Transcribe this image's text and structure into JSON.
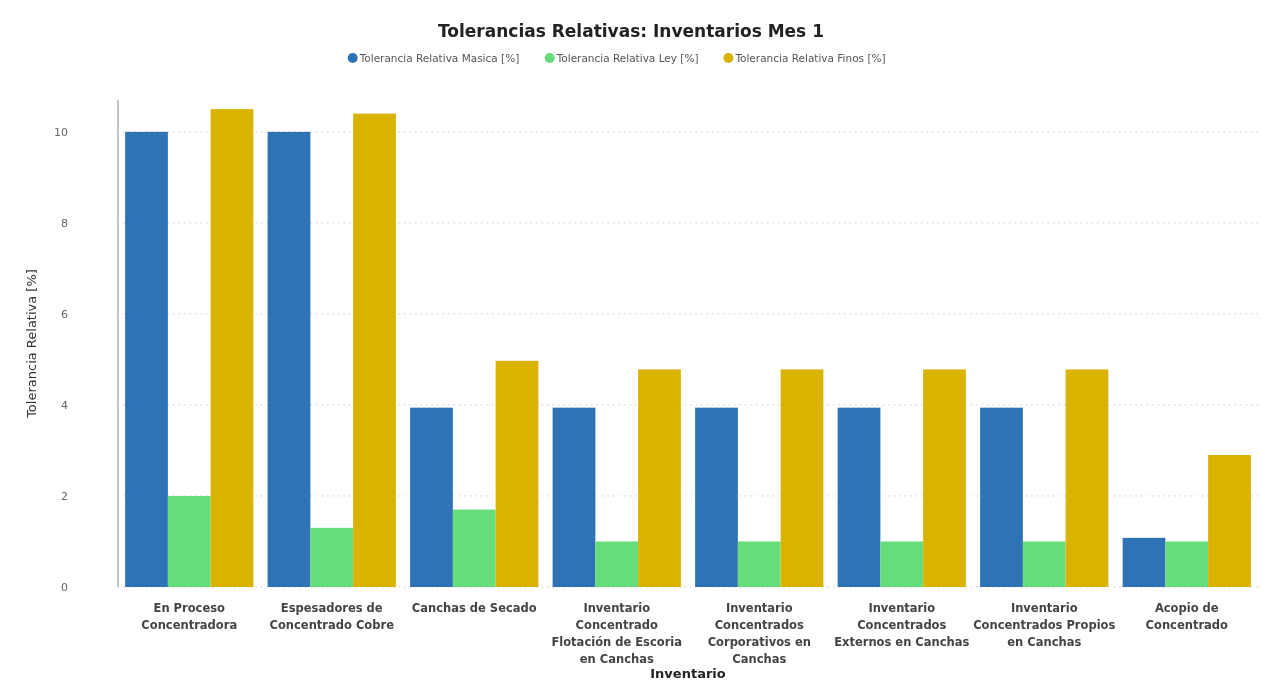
{
  "chart_data": {
    "type": "bar",
    "title": "Tolerancias Relativas: Inventarios Mes 1",
    "xlabel": "Inventario",
    "ylabel": "Tolerancia Relativa [%]",
    "categories": [
      "En Proceso Concentradora",
      "Espesadores de Concentrado Cobre",
      "Canchas de Secado",
      "Inventario Concentrado Flotación de Escoria en Canchas",
      "Inventario Concentrados Corporativos en Canchas",
      "Inventario Concentrados Externos en Canchas",
      "Inventario Concentrados Propios en Canchas",
      "Acopio de Concentrado"
    ],
    "series": [
      {
        "name": "Tolerancia Relativa Masica [%]",
        "color": "#2e73b6",
        "values": [
          10,
          10,
          3.94,
          3.94,
          3.94,
          3.94,
          3.94,
          1.08
        ]
      },
      {
        "name": "Tolerancia Relativa Ley [%]",
        "color": "#66dd7a",
        "values": [
          2,
          1.3,
          1.7,
          1,
          1,
          1,
          1,
          1
        ]
      },
      {
        "name": "Tolerancia Relativa Finos [%]",
        "color": "#d9b300",
        "values": [
          10.5,
          10.4,
          4.97,
          4.78,
          4.78,
          4.78,
          4.78,
          2.9
        ]
      }
    ],
    "ylim": [
      0,
      10.7
    ],
    "yticks": [
      0,
      2,
      4,
      6,
      8,
      10
    ],
    "grid": "y",
    "legend": "top"
  }
}
